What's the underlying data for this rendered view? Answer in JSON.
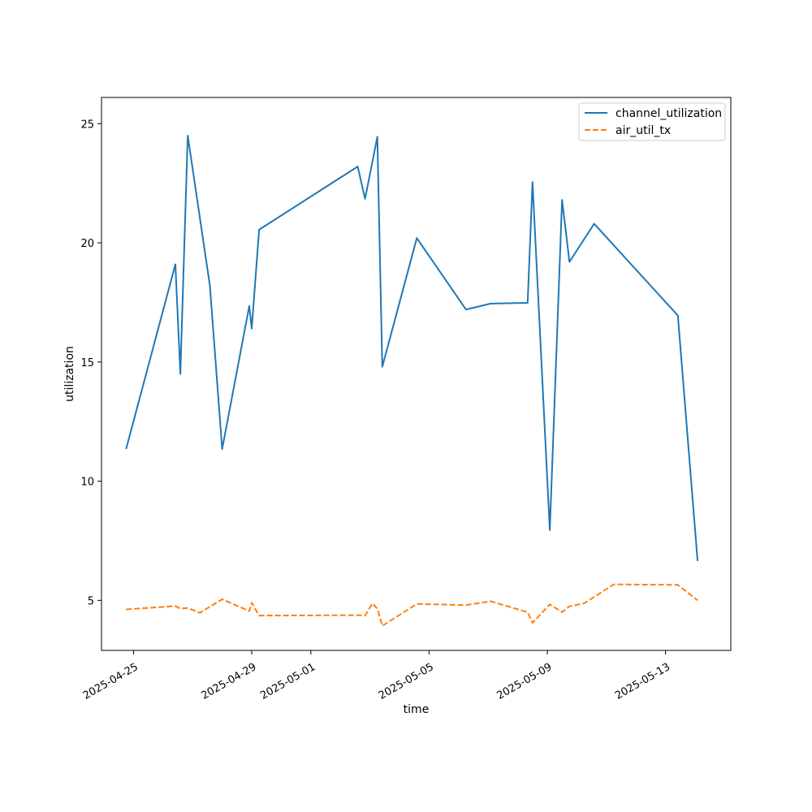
{
  "chart_data": {
    "type": "line",
    "xlabel": "time",
    "ylabel": "utilization",
    "ylim": [
      2.9,
      26.1
    ],
    "xlim": [
      "2025-04-23T22:00",
      "2025-05-15T05:00"
    ],
    "grid": false,
    "legend_position": "top-right",
    "x_ticks": [
      "2025-04-25",
      "2025-04-29",
      "2025-05-01",
      "2025-05-05",
      "2025-05-09",
      "2025-05-13"
    ],
    "y_ticks": [
      5,
      10,
      15,
      20,
      25
    ],
    "series": [
      {
        "name": "channel_utilization",
        "color": "#1f77b4",
        "style": "solid",
        "points": [
          {
            "x": "2025-04-24T18:00",
            "y": 11.35
          },
          {
            "x": "2025-04-26T10:00",
            "y": 19.1
          },
          {
            "x": "2025-04-26T14:00",
            "y": 14.5
          },
          {
            "x": "2025-04-26T20:00",
            "y": 24.5
          },
          {
            "x": "2025-04-27T14:00",
            "y": 18.2
          },
          {
            "x": "2025-04-28T00:00",
            "y": 11.35
          },
          {
            "x": "2025-04-28T22:00",
            "y": 17.35
          },
          {
            "x": "2025-04-29T00:00",
            "y": 16.4
          },
          {
            "x": "2025-04-29T06:00",
            "y": 20.55
          },
          {
            "x": "2025-05-02T14:00",
            "y": 23.2
          },
          {
            "x": "2025-05-02T20:00",
            "y": 21.85
          },
          {
            "x": "2025-05-03T06:00",
            "y": 24.45
          },
          {
            "x": "2025-05-03T10:00",
            "y": 14.8
          },
          {
            "x": "2025-05-04T14:00",
            "y": 20.2
          },
          {
            "x": "2025-05-06T06:00",
            "y": 17.2
          },
          {
            "x": "2025-05-07T02:00",
            "y": 17.45
          },
          {
            "x": "2025-05-08T08:00",
            "y": 17.48
          },
          {
            "x": "2025-05-08T12:00",
            "y": 22.55
          },
          {
            "x": "2025-05-09T02:00",
            "y": 7.95
          },
          {
            "x": "2025-05-09T12:00",
            "y": 21.8
          },
          {
            "x": "2025-05-09T18:00",
            "y": 19.2
          },
          {
            "x": "2025-05-10T14:00",
            "y": 20.8
          },
          {
            "x": "2025-05-13T10:00",
            "y": 16.95
          },
          {
            "x": "2025-05-14T02:00",
            "y": 6.65
          }
        ]
      },
      {
        "name": "air_util_tx",
        "color": "#ff7f0e",
        "style": "dashed",
        "points": [
          {
            "x": "2025-04-24T18:00",
            "y": 4.62
          },
          {
            "x": "2025-04-26T10:00",
            "y": 4.76
          },
          {
            "x": "2025-04-26T14:00",
            "y": 4.65
          },
          {
            "x": "2025-04-26T20:00",
            "y": 4.68
          },
          {
            "x": "2025-04-27T06:00",
            "y": 4.48
          },
          {
            "x": "2025-04-28T00:00",
            "y": 5.05
          },
          {
            "x": "2025-04-28T22:00",
            "y": 4.55
          },
          {
            "x": "2025-04-29T00:00",
            "y": 4.9
          },
          {
            "x": "2025-04-29T06:00",
            "y": 4.36
          },
          {
            "x": "2025-05-02T14:00",
            "y": 4.38
          },
          {
            "x": "2025-05-02T20:00",
            "y": 4.36
          },
          {
            "x": "2025-05-03T02:00",
            "y": 4.87
          },
          {
            "x": "2025-05-03T06:00",
            "y": 4.65
          },
          {
            "x": "2025-05-03T10:00",
            "y": 3.93
          },
          {
            "x": "2025-05-04T14:00",
            "y": 4.85
          },
          {
            "x": "2025-05-06T06:00",
            "y": 4.8
          },
          {
            "x": "2025-05-07T02:00",
            "y": 4.96
          },
          {
            "x": "2025-05-08T08:00",
            "y": 4.5
          },
          {
            "x": "2025-05-08T12:00",
            "y": 4.06
          },
          {
            "x": "2025-05-09T02:00",
            "y": 4.83
          },
          {
            "x": "2025-05-09T12:00",
            "y": 4.5
          },
          {
            "x": "2025-05-09T18:00",
            "y": 4.75
          },
          {
            "x": "2025-05-10T06:00",
            "y": 4.88
          },
          {
            "x": "2025-05-11T06:00",
            "y": 5.67
          },
          {
            "x": "2025-05-13T10:00",
            "y": 5.65
          },
          {
            "x": "2025-05-14T02:00",
            "y": 5.0
          }
        ]
      }
    ]
  }
}
